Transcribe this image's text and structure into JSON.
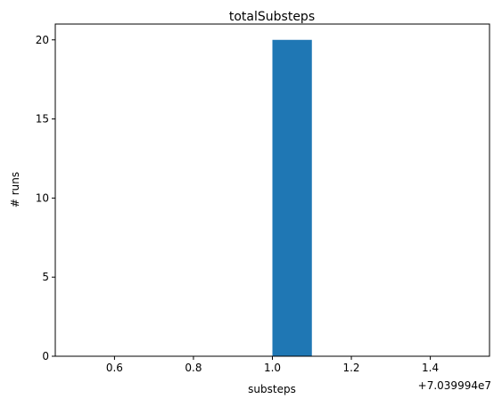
{
  "chart_data": {
    "type": "bar",
    "title": "totalSubsteps",
    "xlabel": "substeps",
    "ylabel": "# runs",
    "x_offset_label": "+7.039994e7",
    "xlim": [
      0.45,
      1.55
    ],
    "ylim": [
      0,
      21
    ],
    "xticks": [
      0.6,
      0.8,
      1.0,
      1.2,
      1.4
    ],
    "xtick_labels": [
      "0.6",
      "0.8",
      "1.0",
      "1.2",
      "1.4"
    ],
    "yticks": [
      0,
      5,
      10,
      15,
      20
    ],
    "ytick_labels": [
      "0",
      "5",
      "10",
      "15",
      "20"
    ],
    "bins": [
      {
        "left": 1.0,
        "right": 1.1,
        "count": 20
      }
    ],
    "bar_color": "#1f77b4",
    "grid": false,
    "legend": "none"
  }
}
